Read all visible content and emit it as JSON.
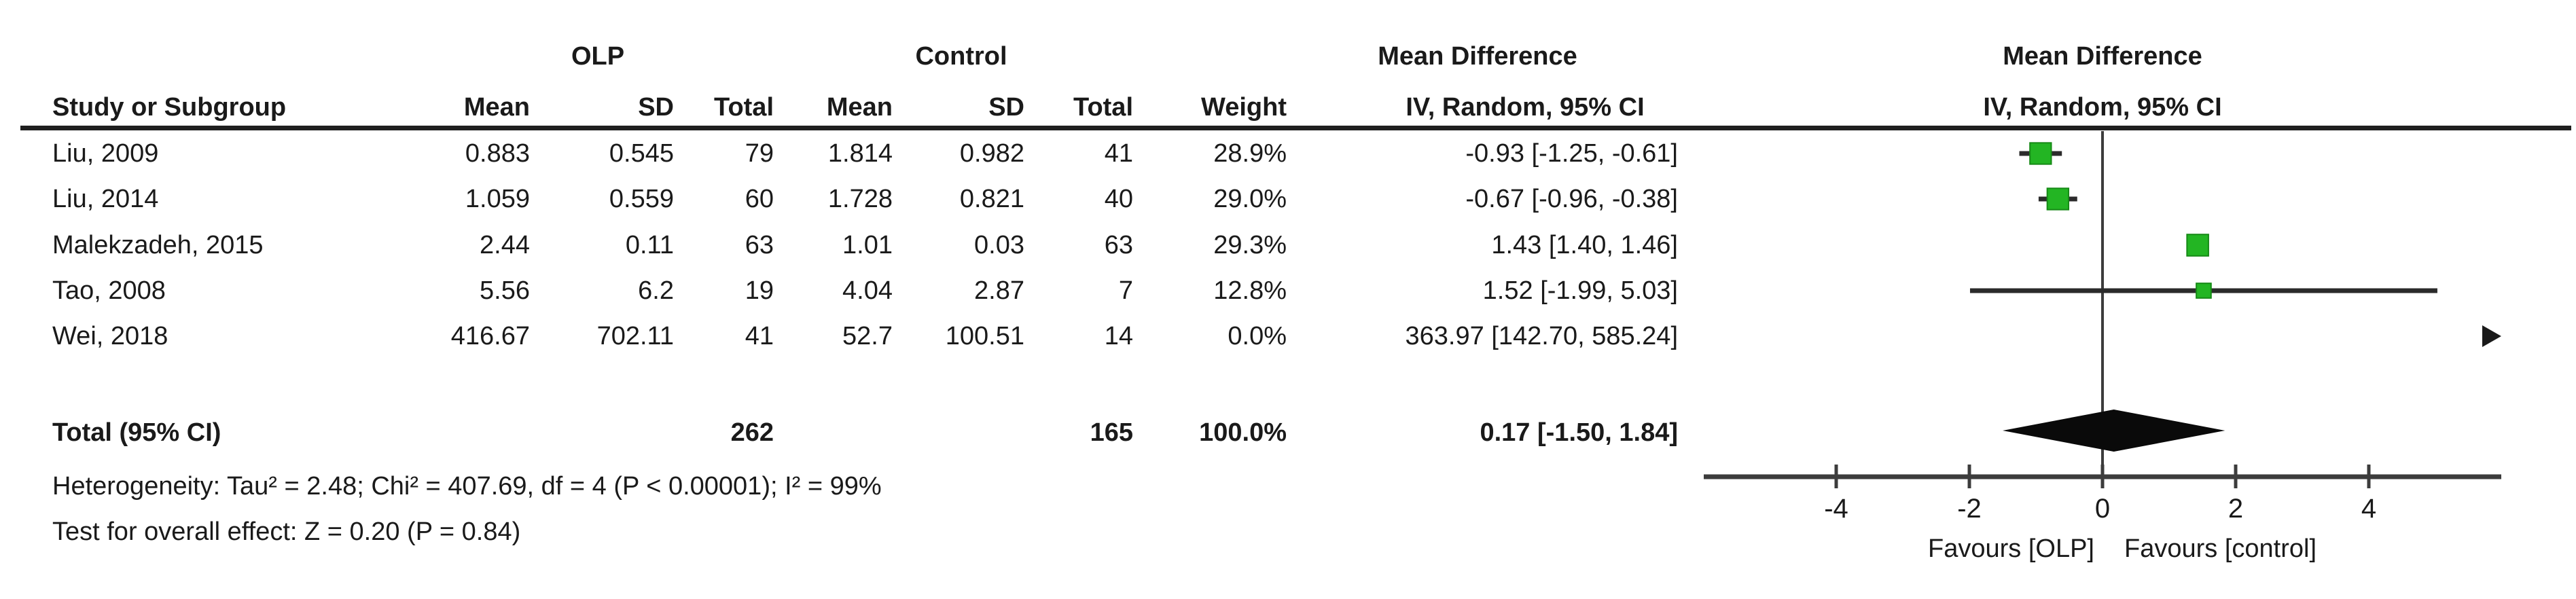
{
  "chart_data": {
    "type": "forest",
    "effect_measure_left_header": "Mean Difference",
    "effect_measure_right_header": "Mean Difference",
    "method_label": "IV, Random, 95% CI",
    "group_left": "OLP",
    "group_right": "Control",
    "table_headers": {
      "study": "Study or Subgroup",
      "mean": "Mean",
      "sd": "SD",
      "total": "Total",
      "weight": "Weight"
    },
    "studies": [
      {
        "name": "Liu, 2009",
        "olp_mean": "0.883",
        "olp_sd": "0.545",
        "olp_total": "79",
        "control_mean": "1.814",
        "control_sd": "0.982",
        "control_total": "41",
        "weight": "28.9%",
        "md_text": "-0.93 [-1.25, -0.61]",
        "md": -0.93,
        "ci": [
          -1.25,
          -0.61
        ]
      },
      {
        "name": "Liu, 2014",
        "olp_mean": "1.059",
        "olp_sd": "0.559",
        "olp_total": "60",
        "control_mean": "1.728",
        "control_sd": "0.821",
        "control_total": "40",
        "weight": "29.0%",
        "md_text": "-0.67 [-0.96, -0.38]",
        "md": -0.67,
        "ci": [
          -0.96,
          -0.38
        ]
      },
      {
        "name": "Malekzadeh, 2015",
        "olp_mean": "2.44",
        "olp_sd": "0.11",
        "olp_total": "63",
        "control_mean": "1.01",
        "control_sd": "0.03",
        "control_total": "63",
        "weight": "29.3%",
        "md_text": "1.43 [1.40, 1.46]",
        "md": 1.43,
        "ci": [
          1.4,
          1.46
        ]
      },
      {
        "name": "Tao, 2008",
        "olp_mean": "5.56",
        "olp_sd": "6.2",
        "olp_total": "19",
        "control_mean": "4.04",
        "control_sd": "2.87",
        "control_total": "7",
        "weight": "12.8%",
        "md_text": "1.52 [-1.99, 5.03]",
        "md": 1.52,
        "ci": [
          -1.99,
          5.03
        ]
      },
      {
        "name": "Wei, 2018",
        "olp_mean": "416.67",
        "olp_sd": "702.11",
        "olp_total": "41",
        "control_mean": "52.7",
        "control_sd": "100.51",
        "control_total": "14",
        "weight": "0.0%",
        "md_text": "363.97 [142.70, 585.24]",
        "md": 363.97,
        "ci": [
          142.7,
          585.24
        ]
      }
    ],
    "total": {
      "label": "Total (95% CI)",
      "olp_total": "262",
      "control_total": "165",
      "weight": "100.0%",
      "md_text": "0.17 [-1.50, 1.84]",
      "md": 0.17,
      "ci": [
        -1.5,
        1.84
      ]
    },
    "heterogeneity": "Heterogeneity: Tau² = 2.48; Chi² = 407.69, df = 4 (P < 0.00001); I² = 99%",
    "overall_effect": "Test for overall effect: Z = 0.20 (P = 0.84)",
    "axis": {
      "ticks": [
        -4,
        -2,
        0,
        2,
        4
      ],
      "xlim": [
        -6,
        6
      ],
      "favours_left": "Favours [OLP]",
      "favours_right": "Favours [control]"
    },
    "colors": {
      "marker_green": "#23b523",
      "marker_border": "#168a16",
      "line": "#2b2b2b",
      "text": "#1a1a1a"
    }
  }
}
